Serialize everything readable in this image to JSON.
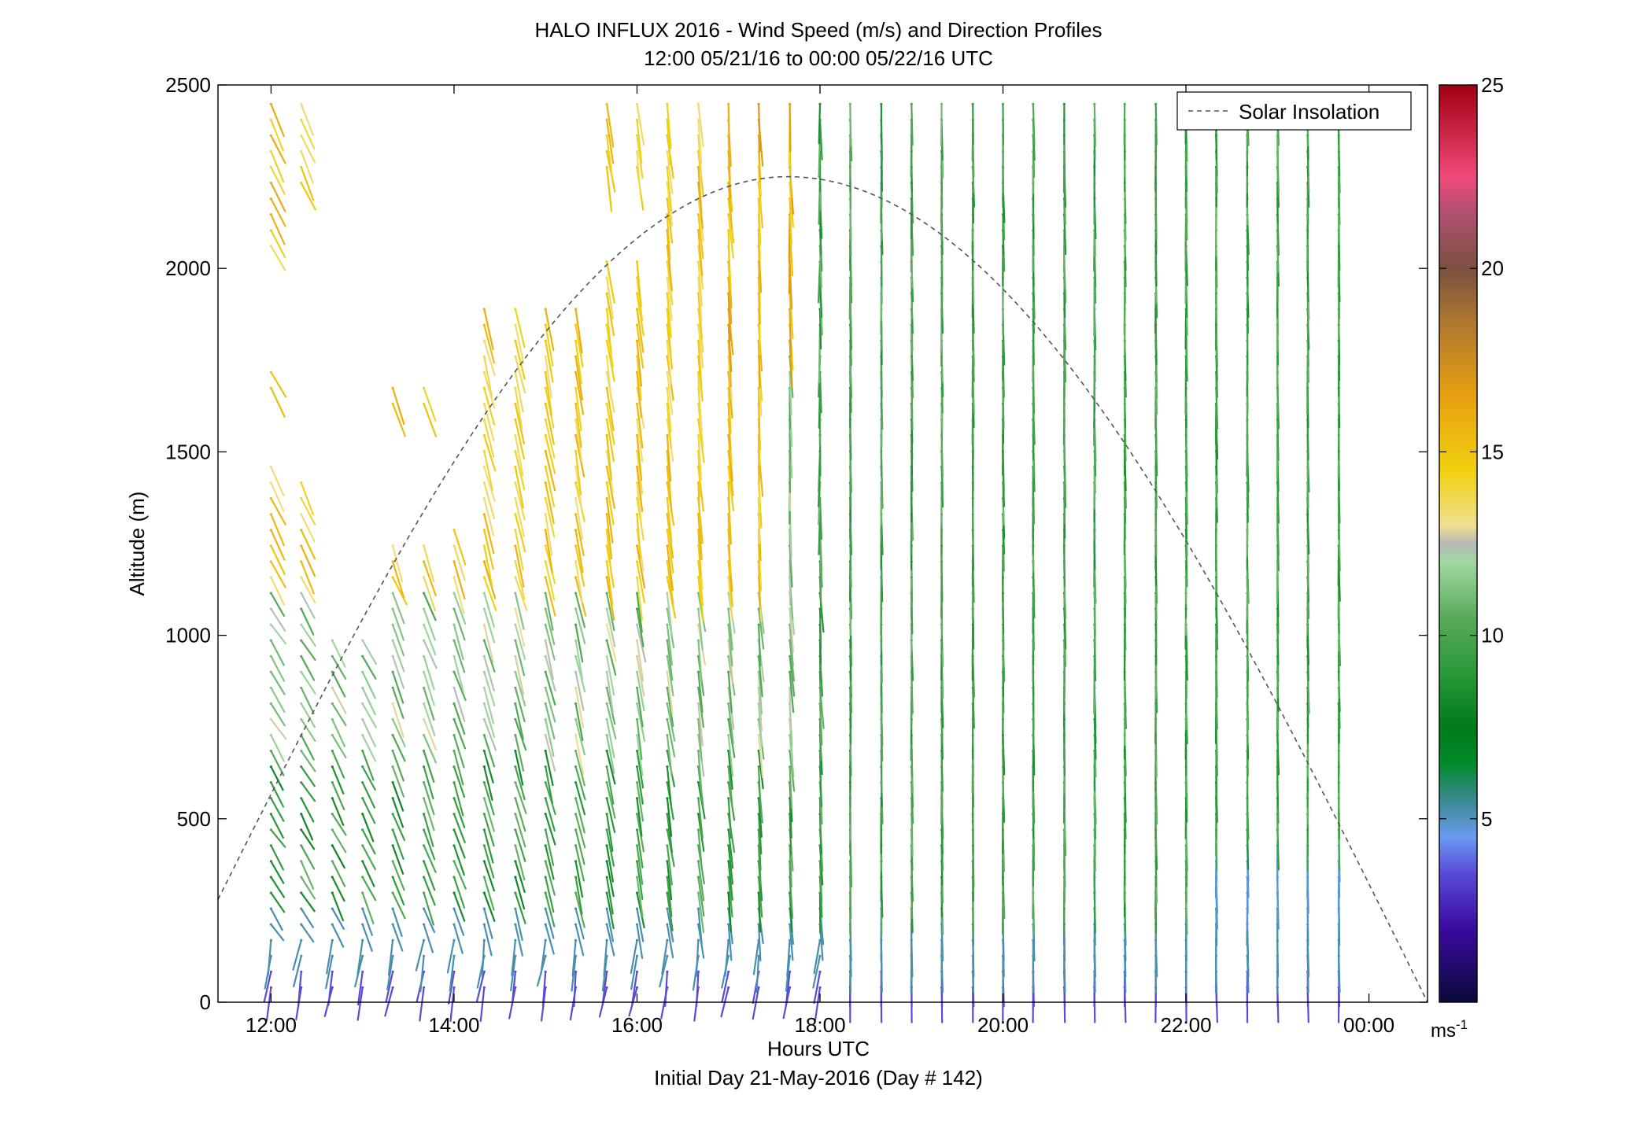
{
  "chart_data": {
    "type": "wind-barb-profile",
    "title": "HALO INFLUX 2016 - Wind Speed (m/s) and Direction Profiles",
    "subtitle": "12:00 05/21/16 to 00:00 05/22/16  UTC",
    "xlabel": "Hours UTC",
    "xlabel2": "Initial Day 21-May-2016 (Day # 142)",
    "ylabel": "Altitude (m)",
    "xlim": [
      11.42,
      24.64
    ],
    "ylim": [
      0,
      2500
    ],
    "xticks": [
      {
        "value": 12,
        "label": "12:00"
      },
      {
        "value": 14,
        "label": "14:00"
      },
      {
        "value": 16,
        "label": "16:00"
      },
      {
        "value": 18,
        "label": "18:00"
      },
      {
        "value": 20,
        "label": "20:00"
      },
      {
        "value": 22,
        "label": "22:00"
      },
      {
        "value": 24,
        "label": "00:00"
      }
    ],
    "yticks": [
      {
        "value": 0,
        "label": "0"
      },
      {
        "value": 500,
        "label": "500"
      },
      {
        "value": 1000,
        "label": "1000"
      },
      {
        "value": 1500,
        "label": "1500"
      },
      {
        "value": 2000,
        "label": "2000"
      },
      {
        "value": 2500,
        "label": "2500"
      }
    ],
    "legend": {
      "position": "top-right",
      "entries": [
        {
          "label": "Solar Insolation",
          "style": "dashed",
          "color": "#555555"
        }
      ]
    },
    "colorbar": {
      "min": 0,
      "max": 25,
      "unit": "ms-1",
      "unit_base": "ms",
      "unit_sup": "-1",
      "ticks": [
        {
          "value": 5,
          "label": "5"
        },
        {
          "value": 10,
          "label": "10"
        },
        {
          "value": 15,
          "label": "15"
        },
        {
          "value": 20,
          "label": "20"
        },
        {
          "value": 25,
          "label": "25"
        }
      ],
      "stops": [
        {
          "v": 0,
          "color": "#0a0a3a"
        },
        {
          "v": 2,
          "color": "#3a0aa0"
        },
        {
          "v": 3.5,
          "color": "#5a4ad8"
        },
        {
          "v": 4.5,
          "color": "#6a9af0"
        },
        {
          "v": 5.5,
          "color": "#3a8a90"
        },
        {
          "v": 6.5,
          "color": "#008a2a"
        },
        {
          "v": 7.5,
          "color": "#007a1a"
        },
        {
          "v": 9,
          "color": "#2a9a3a"
        },
        {
          "v": 10.5,
          "color": "#5aaa5a"
        },
        {
          "v": 12,
          "color": "#a0d8a0"
        },
        {
          "v": 12.5,
          "color": "#b8b8b8"
        },
        {
          "v": 13,
          "color": "#f0e090"
        },
        {
          "v": 14.5,
          "color": "#f0d010"
        },
        {
          "v": 16.5,
          "color": "#e8a010"
        },
        {
          "v": 18.5,
          "color": "#b07830"
        },
        {
          "v": 20,
          "color": "#7a5040"
        },
        {
          "v": 21.5,
          "color": "#b05070"
        },
        {
          "v": 22.5,
          "color": "#f04a7a"
        },
        {
          "v": 25,
          "color": "#a00010"
        }
      ]
    },
    "solar_insolation": {
      "peak_time": 17.65,
      "peak_altitude": 2250,
      "start_time": 11.42,
      "start_altitude": 280,
      "end_time": 24.64,
      "end_altitude": 0
    },
    "profile_times": [
      12.0,
      12.33,
      12.67,
      13.0,
      13.33,
      13.67,
      14.0,
      14.33,
      14.67,
      15.0,
      15.33,
      15.67,
      16.0,
      16.33,
      16.67,
      17.0,
      17.33,
      17.67,
      18.0,
      18.33,
      18.67,
      19.0,
      19.33,
      19.67,
      20.0,
      20.33,
      20.67,
      21.0,
      21.33,
      21.67,
      22.0,
      22.33,
      22.67,
      23.0,
      23.33,
      23.67
    ]
  }
}
